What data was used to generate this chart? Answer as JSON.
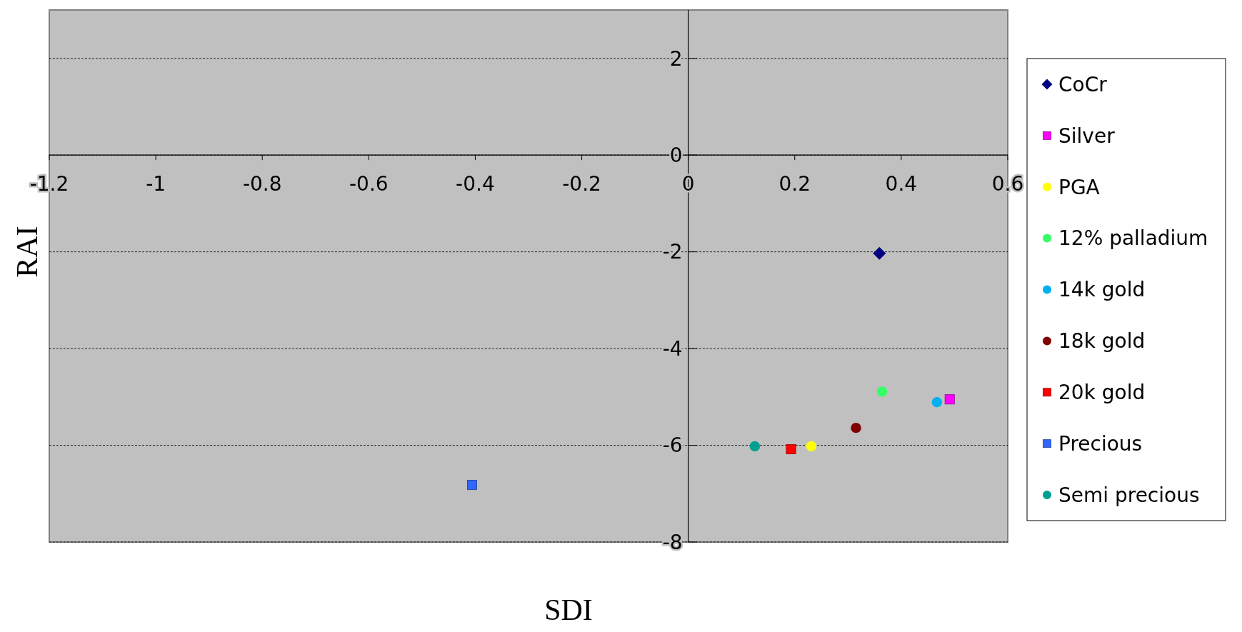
{
  "chart_data": {
    "type": "scatter",
    "xlabel": "SDI",
    "ylabel": "RAI",
    "xlim": [
      -1.2,
      0.6
    ],
    "ylim": [
      -8,
      3
    ],
    "xticks": [
      -1.2,
      -1,
      -0.8,
      -0.6,
      -0.4,
      -0.2,
      0,
      0.2,
      0.4,
      0.6
    ],
    "yticks": [
      -8,
      -6,
      -4,
      -2,
      0,
      2
    ],
    "grid": "y",
    "legend": "right",
    "series": [
      {
        "name": "CoCr",
        "color": "#000080",
        "marker": "diamond",
        "x": [
          0.359
        ],
        "values": [
          -2.03
        ]
      },
      {
        "name": "Silver",
        "color": "#ff00ff",
        "marker": "square",
        "x": [
          0.491
        ],
        "values": [
          -5.05
        ]
      },
      {
        "name": "PGA",
        "color": "#ffff00",
        "marker": "circle",
        "x": [
          0.231
        ],
        "values": [
          -6.02
        ]
      },
      {
        "name": "12% palladium",
        "color": "#33ff66",
        "marker": "circle",
        "x": [
          0.364
        ],
        "values": [
          -4.89
        ]
      },
      {
        "name": "14k gold",
        "color": "#00b0f0",
        "marker": "circle",
        "x": [
          0.467
        ],
        "values": [
          -5.11
        ]
      },
      {
        "name": "18k gold",
        "color": "#800000",
        "marker": "circle",
        "x": [
          0.315
        ],
        "values": [
          -5.64
        ]
      },
      {
        "name": "20k gold",
        "color": "#ff0000",
        "marker": "square",
        "x": [
          0.193
        ],
        "values": [
          -6.08
        ]
      },
      {
        "name": "Precious",
        "color": "#3366ff",
        "marker": "square",
        "x": [
          -0.406
        ],
        "values": [
          -6.82
        ]
      },
      {
        "name": "Semi precious",
        "color": "#00a090",
        "marker": "circle",
        "x": [
          0.125
        ],
        "values": [
          -6.02
        ]
      }
    ]
  }
}
